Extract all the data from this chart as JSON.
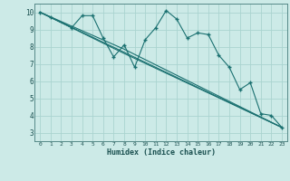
{
  "xlabel": "Humidex (Indice chaleur)",
  "bg_color": "#cceae7",
  "grid_color": "#aad4d0",
  "line_color": "#1a7070",
  "xlim": [
    -0.5,
    23.5
  ],
  "ylim": [
    2.5,
    10.5
  ],
  "xticks": [
    0,
    1,
    2,
    3,
    4,
    5,
    6,
    7,
    8,
    9,
    10,
    11,
    12,
    13,
    14,
    15,
    16,
    17,
    18,
    19,
    20,
    21,
    22,
    23
  ],
  "yticks": [
    3,
    4,
    5,
    6,
    7,
    8,
    9,
    10
  ],
  "series_main": {
    "x": [
      0,
      1,
      3,
      4,
      5,
      6,
      7,
      8,
      9,
      10,
      11,
      12,
      13,
      14,
      15,
      16,
      17,
      18,
      19,
      20,
      21,
      22,
      23
    ],
    "y": [
      10.0,
      9.7,
      9.1,
      9.8,
      9.8,
      8.5,
      7.4,
      8.1,
      6.8,
      8.4,
      9.1,
      10.1,
      9.6,
      8.5,
      8.8,
      8.7,
      7.5,
      6.8,
      5.5,
      5.9,
      4.1,
      4.0,
      3.3
    ]
  },
  "series_lines": [
    {
      "x": [
        0,
        23
      ],
      "y": [
        10.0,
        3.3
      ]
    },
    {
      "x": [
        0,
        8,
        23
      ],
      "y": [
        10.0,
        7.85,
        3.3
      ]
    },
    {
      "x": [
        0,
        8,
        23
      ],
      "y": [
        10.0,
        7.6,
        3.3
      ]
    }
  ]
}
